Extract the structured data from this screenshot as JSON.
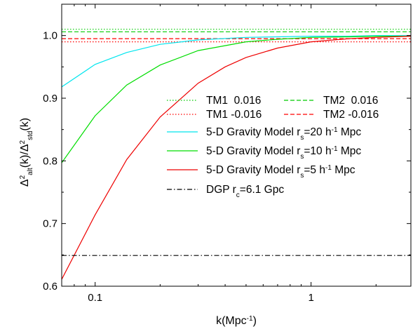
{
  "chart_data": {
    "type": "line",
    "xlabel": "k(Mpc<sup>-1</sup>)",
    "xlabel_parts": [
      {
        "text": "k(Mpc"
      },
      {
        "text": "-1",
        "sup": true
      },
      {
        "text": ")"
      }
    ],
    "ylabel_parts": [
      {
        "text": "Δ"
      },
      {
        "text": "2",
        "sup": true
      },
      {
        "text": "alt",
        "sub": true
      },
      {
        "text": "(k)/Δ"
      },
      {
        "text": "2",
        "sup": true
      },
      {
        "text": "std",
        "sub": true
      },
      {
        "text": "(k)"
      }
    ],
    "x_scale": "log",
    "xlim": [
      0.07,
      2.9
    ],
    "ylim": [
      0.6,
      1.05
    ],
    "x_ticks": [
      {
        "value": 0.1,
        "label": "0.1"
      },
      {
        "value": 1,
        "label": "1"
      }
    ],
    "y_ticks": [
      {
        "value": 0.6,
        "label": "0.6"
      },
      {
        "value": 0.7,
        "label": "0.7"
      },
      {
        "value": 0.8,
        "label": "0.8"
      },
      {
        "value": 0.9,
        "label": "0.9"
      },
      {
        "value": 1.0,
        "label": "1.0"
      }
    ],
    "grid": false,
    "legend_position": "center-right",
    "series": [
      {
        "name": "TM1  0.016",
        "color": "#00cc00",
        "dash": "1.5,2.5",
        "x": [
          0.07,
          2.9
        ],
        "y": [
          1.01,
          1.01
        ]
      },
      {
        "name": "TM2  0.016",
        "color": "#00cc00",
        "dash": "6,3",
        "x": [
          0.07,
          2.9
        ],
        "y": [
          1.006,
          1.006
        ]
      },
      {
        "name": "TM1 -0.016",
        "color": "#ff0000",
        "dash": "1.5,2.5",
        "x": [
          0.07,
          2.9
        ],
        "y": [
          0.99,
          0.99
        ]
      },
      {
        "name": "TM2 -0.016",
        "color": "#ff0000",
        "dash": "6,3",
        "x": [
          0.07,
          2.9
        ],
        "y": [
          0.995,
          0.995
        ]
      },
      {
        "name_parts": [
          {
            "text": "5-D Gravity Model r"
          },
          {
            "text": "s",
            "sub": true
          },
          {
            "text": "=20 h"
          },
          {
            "text": "-1",
            "sup": true
          },
          {
            "text": " Mpc"
          }
        ],
        "color": "#00e5ee",
        "dash": "",
        "x": [
          0.07,
          0.1,
          0.14,
          0.2,
          0.3,
          0.5,
          0.7,
          1.0,
          1.5,
          2.0,
          2.9
        ],
        "y": [
          0.918,
          0.954,
          0.973,
          0.986,
          0.993,
          0.997,
          0.998,
          0.999,
          0.999,
          1.0,
          1.0
        ]
      },
      {
        "name_parts": [
          {
            "text": "5-D Gravity Model r"
          },
          {
            "text": "s",
            "sub": true
          },
          {
            "text": "=10 h"
          },
          {
            "text": "-1",
            "sup": true
          },
          {
            "text": " Mpc"
          }
        ],
        "color": "#00dd00",
        "dash": "",
        "x": [
          0.07,
          0.1,
          0.14,
          0.2,
          0.3,
          0.5,
          0.7,
          1.0,
          1.5,
          2.0,
          2.9
        ],
        "y": [
          0.797,
          0.872,
          0.921,
          0.953,
          0.976,
          0.99,
          0.994,
          0.997,
          0.998,
          0.999,
          0.999
        ]
      },
      {
        "name_parts": [
          {
            "text": "5-D Gravity Model r"
          },
          {
            "text": "s",
            "sub": true
          },
          {
            "text": "=5 h"
          },
          {
            "text": "-1",
            "sup": true
          },
          {
            "text": " Mpc"
          }
        ],
        "color": "#ee0000",
        "dash": "",
        "x": [
          0.07,
          0.1,
          0.14,
          0.2,
          0.3,
          0.4,
          0.5,
          0.7,
          1.0,
          1.5,
          2.0,
          2.9
        ],
        "y": [
          0.611,
          0.714,
          0.802,
          0.87,
          0.924,
          0.95,
          0.965,
          0.98,
          0.99,
          0.995,
          0.997,
          0.999
        ]
      },
      {
        "name_parts": [
          {
            "text": "DGP r"
          },
          {
            "text": "c",
            "sub": true
          },
          {
            "text": "=6.1 Gpc"
          }
        ],
        "color": "#000000",
        "dash": "7,3,1.5,3",
        "x": [
          0.07,
          2.9
        ],
        "y": [
          0.649,
          0.649
        ]
      }
    ],
    "legend_layout": [
      {
        "series": 0,
        "row": 0,
        "col": 0
      },
      {
        "series": 1,
        "row": 0,
        "col": 1
      },
      {
        "series": 2,
        "row": 1,
        "col": 0
      },
      {
        "series": 3,
        "row": 1,
        "col": 1
      },
      {
        "series": 4,
        "row": 2,
        "col": 0
      },
      {
        "series": 5,
        "row": 3,
        "col": 0
      },
      {
        "series": 6,
        "row": 4,
        "col": 0
      },
      {
        "series": 7,
        "row": 5,
        "col": 0
      }
    ]
  }
}
